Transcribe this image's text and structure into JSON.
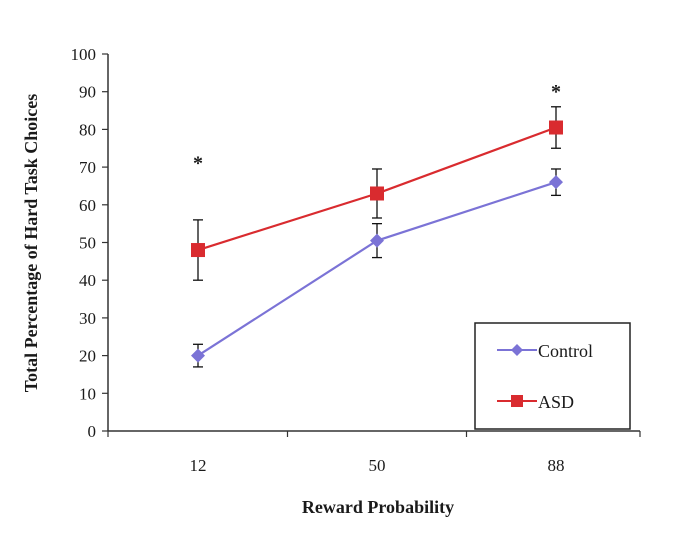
{
  "chart_data": {
    "type": "line",
    "xlabel": "Reward Probability",
    "ylabel": "Total Percentage of Hard Task Choices",
    "categories": [
      "12",
      "50",
      "88"
    ],
    "ylim": [
      0,
      100
    ],
    "yticks": [
      "0",
      "10",
      "20",
      "30",
      "40",
      "50",
      "60",
      "70",
      "80",
      "90",
      "100"
    ],
    "grid": false,
    "legend": "bottom-right",
    "series": [
      {
        "name": "Control",
        "color": "#7b73d6",
        "marker": "diamond",
        "values": [
          20,
          50.5,
          66
        ],
        "error": [
          3,
          4.5,
          3.5
        ]
      },
      {
        "name": "ASD",
        "color": "#d92b2f",
        "marker": "square",
        "values": [
          48,
          63,
          80.5
        ],
        "error": [
          8,
          6.5,
          5.5
        ]
      }
    ],
    "annotations": [
      {
        "text": "*",
        "category": "12",
        "y": 72
      },
      {
        "text": "*",
        "category": "88",
        "y": 91
      }
    ]
  }
}
